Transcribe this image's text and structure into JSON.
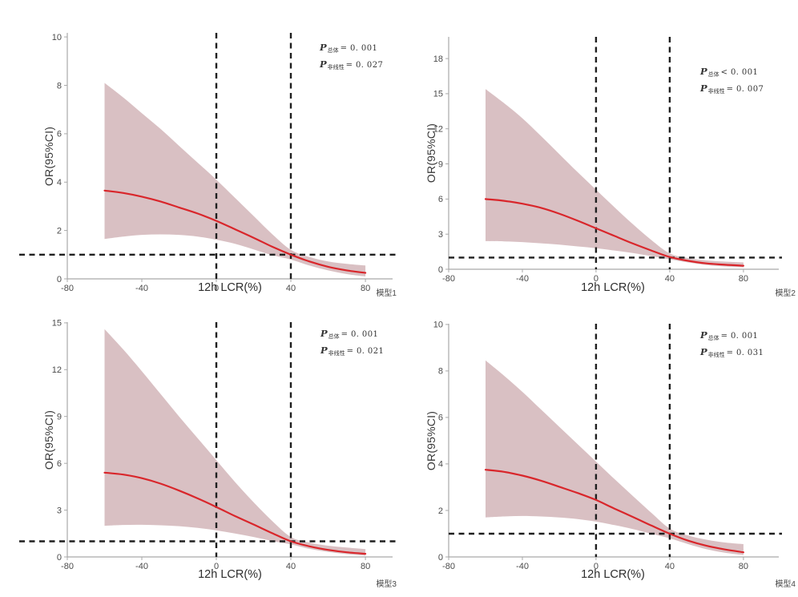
{
  "style": {
    "background": "#ffffff",
    "curve_color": "#d9262b",
    "band_color": "#d9c0c3",
    "reference_line_color": "#1f1f1f",
    "axis_color": "#a9a9a9",
    "tick_label_color": "#4b4b4b"
  },
  "chart_data": [
    {
      "type": "line",
      "model_label": "模型1",
      "xlabel": "12h LCR(%)",
      "ylabel": "OR(95%CI)",
      "xlim": [
        -80,
        80
      ],
      "ylim": [
        0,
        10
      ],
      "xticks": [
        -80,
        -40,
        0,
        40,
        80
      ],
      "yticks": [
        0,
        2,
        4,
        6,
        8,
        10
      ],
      "reference_lines": {
        "vertical_x": [
          0,
          40
        ],
        "horizontal_y": 1
      },
      "p_overall": {
        "symbol": "P",
        "subscript": "总体",
        "text": "= 0. 001"
      },
      "p_nonlinear": {
        "symbol": "P",
        "subscript": "非线性",
        "text": "= 0. 027"
      },
      "x": [
        -60,
        -50,
        -40,
        -30,
        -20,
        -10,
        0,
        10,
        20,
        30,
        40,
        50,
        60,
        70,
        80
      ],
      "series": [
        {
          "name": "OR",
          "values": [
            3.65,
            3.55,
            3.4,
            3.2,
            2.95,
            2.7,
            2.4,
            2.05,
            1.7,
            1.33,
            1.0,
            0.72,
            0.5,
            0.35,
            0.25
          ]
        },
        {
          "name": "95%CI upper",
          "values": [
            8.1,
            7.5,
            6.85,
            6.2,
            5.5,
            4.8,
            4.1,
            3.35,
            2.6,
            1.85,
            1.2,
            0.9,
            0.72,
            0.62,
            0.55
          ]
        },
        {
          "name": "95%CI lower",
          "values": [
            1.65,
            1.75,
            1.82,
            1.84,
            1.82,
            1.75,
            1.62,
            1.45,
            1.22,
            0.98,
            0.8,
            0.55,
            0.35,
            0.2,
            0.1
          ]
        }
      ]
    },
    {
      "type": "line",
      "model_label": "模型2",
      "xlabel": "12h LCR(%)",
      "ylabel": "OR(95%CI)",
      "xlim": [
        -80,
        80
      ],
      "ylim": [
        0,
        18
      ],
      "xticks": [
        -80,
        -40,
        0,
        40,
        80
      ],
      "yticks": [
        0,
        3,
        6,
        9,
        12,
        15,
        18
      ],
      "reference_lines": {
        "vertical_x": [
          0,
          40
        ],
        "horizontal_y": 1
      },
      "p_overall": {
        "symbol": "P",
        "subscript": "总体",
        "text": "< 0. 001"
      },
      "p_nonlinear": {
        "symbol": "P",
        "subscript": "非线性",
        "text": "= 0. 007"
      },
      "x": [
        -60,
        -50,
        -40,
        -30,
        -20,
        -10,
        0,
        10,
        20,
        30,
        40,
        50,
        60,
        70,
        80
      ],
      "series": [
        {
          "name": "OR",
          "values": [
            6.0,
            5.85,
            5.6,
            5.25,
            4.75,
            4.15,
            3.5,
            2.85,
            2.2,
            1.6,
            1.05,
            0.72,
            0.5,
            0.38,
            0.3
          ]
        },
        {
          "name": "95%CI upper",
          "values": [
            15.4,
            14.2,
            12.9,
            11.4,
            9.85,
            8.3,
            6.8,
            5.3,
            3.85,
            2.5,
            1.35,
            0.95,
            0.75,
            0.65,
            0.58
          ]
        },
        {
          "name": "95%CI lower",
          "values": [
            2.4,
            2.38,
            2.32,
            2.22,
            2.1,
            1.95,
            1.8,
            1.6,
            1.38,
            1.12,
            0.85,
            0.58,
            0.36,
            0.24,
            0.16
          ]
        }
      ]
    },
    {
      "type": "line",
      "model_label": "模型3",
      "xlabel": "12h LCR(%)",
      "ylabel": "OR(95%CI)",
      "xlim": [
        -80,
        80
      ],
      "ylim": [
        0,
        15
      ],
      "xticks": [
        -80,
        -40,
        0,
        40,
        80
      ],
      "yticks": [
        0,
        3,
        6,
        9,
        12,
        15
      ],
      "reference_lines": {
        "vertical_x": [
          0,
          40
        ],
        "horizontal_y": 1
      },
      "p_overall": {
        "symbol": "P",
        "subscript": "总体",
        "text": "= 0. 001"
      },
      "p_nonlinear": {
        "symbol": "P",
        "subscript": "非线性",
        "text": "= 0. 021"
      },
      "x": [
        -60,
        -50,
        -40,
        -30,
        -20,
        -10,
        0,
        10,
        20,
        30,
        40,
        50,
        60,
        70,
        80
      ],
      "series": [
        {
          "name": "OR",
          "values": [
            5.4,
            5.28,
            5.05,
            4.7,
            4.25,
            3.75,
            3.2,
            2.62,
            2.08,
            1.52,
            1.0,
            0.68,
            0.45,
            0.3,
            0.2
          ]
        },
        {
          "name": "95%CI upper",
          "values": [
            14.6,
            13.3,
            11.9,
            10.45,
            9.0,
            7.6,
            6.2,
            4.8,
            3.5,
            2.3,
            1.28,
            0.92,
            0.72,
            0.6,
            0.5
          ]
        },
        {
          "name": "95%CI lower",
          "values": [
            2.0,
            2.05,
            2.06,
            2.03,
            1.97,
            1.86,
            1.7,
            1.5,
            1.28,
            1.02,
            0.8,
            0.52,
            0.32,
            0.18,
            0.08
          ]
        }
      ]
    },
    {
      "type": "line",
      "model_label": "模型4",
      "xlabel": "12h LCR(%)",
      "ylabel": "OR(95%CI)",
      "xlim": [
        -80,
        80
      ],
      "ylim": [
        0,
        10
      ],
      "xticks": [
        -80,
        -40,
        0,
        40,
        80
      ],
      "yticks": [
        0,
        2,
        4,
        6,
        8,
        10
      ],
      "reference_lines": {
        "vertical_x": [
          0,
          40
        ],
        "horizontal_y": 1
      },
      "p_overall": {
        "symbol": "P",
        "subscript": "总体",
        "text": "= 0. 001"
      },
      "p_nonlinear": {
        "symbol": "P",
        "subscript": "非线性",
        "text": "= 0. 031"
      },
      "x": [
        -60,
        -50,
        -40,
        -30,
        -20,
        -10,
        0,
        10,
        20,
        30,
        40,
        50,
        60,
        70,
        80
      ],
      "series": [
        {
          "name": "OR",
          "values": [
            3.75,
            3.66,
            3.5,
            3.28,
            3.02,
            2.75,
            2.45,
            2.08,
            1.72,
            1.35,
            1.0,
            0.7,
            0.48,
            0.32,
            0.2
          ]
        },
        {
          "name": "95%CI upper",
          "values": [
            8.45,
            7.8,
            7.1,
            6.35,
            5.6,
            4.85,
            4.1,
            3.35,
            2.62,
            1.9,
            1.22,
            0.92,
            0.74,
            0.62,
            0.55
          ]
        },
        {
          "name": "95%CI lower",
          "values": [
            1.7,
            1.74,
            1.76,
            1.74,
            1.7,
            1.63,
            1.52,
            1.37,
            1.2,
            1.0,
            0.8,
            0.55,
            0.33,
            0.18,
            0.08
          ]
        }
      ]
    }
  ]
}
